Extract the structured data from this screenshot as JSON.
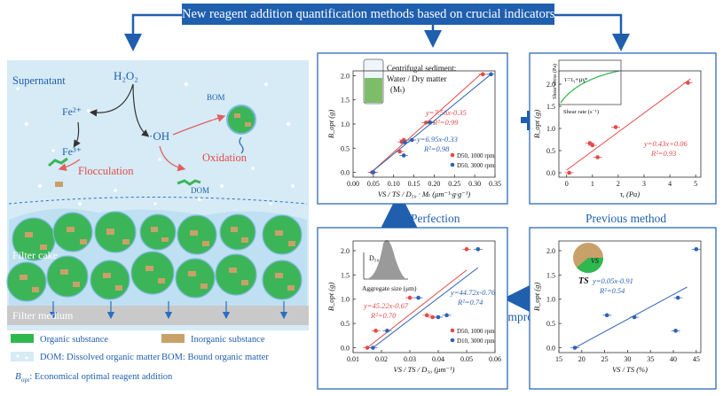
{
  "banner": "New reagent addition quantification methods based on crucial indicators",
  "labels": {
    "perfection": "Perfection",
    "previous_method": "Previous method",
    "improve": "Improve"
  },
  "process": {
    "supernatant": "Supernatant",
    "h2o2": "H₂O₂",
    "fe2": "Fe²⁺",
    "fe3": "Fe³⁺",
    "oh": "·OH",
    "bom": "BOM",
    "dom": "DOM",
    "flocculation": "Flocculation",
    "oxidation": "Oxidation",
    "filter_cake": "Filter cake",
    "filter_medium": "Filter medium"
  },
  "legend": {
    "organic": "Organic substance",
    "inorganic": "Inorganic substance",
    "dom": "DOM: Dissolved organic matter",
    "bom": "BOM: Bound organic matter",
    "bopt": "B",
    "bopt_sub": "opt",
    "bopt_desc": ": Economical optimal reagent addition"
  },
  "colors": {
    "banner": "#1f5fae",
    "accent": "#1f5fae",
    "red_series": "#e34a4a",
    "blue_series": "#2e62b4",
    "organic": "#2fb84e",
    "inorganic": "#c9a06a",
    "water": "#d6ebf6",
    "plus": "#1f5fae"
  },
  "chart_data": [
    {
      "type": "scatter",
      "id": "top-middle",
      "xlabel": "VS / TS / D₅₀ · Mₜ (μm⁻¹·g·g⁻¹)",
      "ylabel": "B_opt (g)",
      "xlim": [
        0.0,
        0.35
      ],
      "ylim": [
        -0.1,
        2.1
      ],
      "xticks": [
        "0.00",
        "0.05",
        "0.10",
        "0.15",
        "0.20",
        "0.25",
        "0.30",
        "0.35"
      ],
      "yticks": [
        "0.0",
        "0.5",
        "1.0",
        "1.5",
        "2.0"
      ],
      "series": [
        {
          "name": "D50, 1000 rpm",
          "color": "red",
          "equation": "y=7.56x-0.35",
          "r2": "R²=0.99",
          "points": [
            [
              0.047,
              0.0
            ],
            [
              0.115,
              0.43
            ],
            [
              0.12,
              0.63
            ],
            [
              0.125,
              0.67
            ],
            [
              0.18,
              1.03
            ],
            [
              0.19,
              1.03
            ],
            [
              0.32,
              2.03
            ]
          ],
          "fit": [
            [
              0.045,
              0.0
            ],
            [
              0.32,
              2.07
            ]
          ]
        },
        {
          "name": "D50, 3000 rpm",
          "color": "blue",
          "equation": "y=6.95x-0.33",
          "r2": "R²=0.98",
          "points": [
            [
              0.05,
              0.0
            ],
            [
              0.125,
              0.35
            ],
            [
              0.128,
              0.62
            ],
            [
              0.145,
              0.67
            ],
            [
              0.19,
              1.03
            ],
            [
              0.34,
              2.03
            ]
          ],
          "fit": [
            [
              0.045,
              0.0
            ],
            [
              0.34,
              2.03
            ]
          ]
        }
      ],
      "inset_text": [
        "Centrifugal sediment:",
        "Water / Dry matter",
        "(Mₜ)"
      ]
    },
    {
      "type": "scatter",
      "id": "top-right",
      "xlabel": "τᵧ (Pa)",
      "ylabel": "B_opt (g)",
      "xlim": [
        -0.3,
        5.2
      ],
      "ylim": [
        -0.1,
        2.3
      ],
      "xticks": [
        "0",
        "1",
        "2",
        "3",
        "4",
        "5"
      ],
      "yticks": [
        "0.0",
        "0.5",
        "1.0",
        "1.5",
        "2.0"
      ],
      "series": [
        {
          "name": "data",
          "color": "red",
          "equation": "y=0.43x+0.06",
          "r2": "R²=0.93",
          "points": [
            [
              0.1,
              0.0
            ],
            [
              1.2,
              0.35
            ],
            [
              0.9,
              0.67
            ],
            [
              1.0,
              0.62
            ],
            [
              1.9,
              1.03
            ],
            [
              4.7,
              2.03
            ]
          ],
          "fit": [
            [
              0.0,
              0.06
            ],
            [
              4.8,
              2.12
            ]
          ]
        }
      ],
      "inset": {
        "title": "τ=τᵧ+μγⁿ",
        "xlabel": "Shear rate (s⁻¹)",
        "ylabel": "Shear stress (Pa)",
        "xticks": [
          "0",
          "200",
          "400",
          "600",
          "800",
          "1000"
        ]
      }
    },
    {
      "type": "scatter",
      "id": "bottom-middle",
      "xlabel": "VS / TS / D₅₀ (μm⁻¹)",
      "ylabel": "B_opt (g)",
      "xlim": [
        0.01,
        0.06
      ],
      "ylim": [
        -0.1,
        2.2
      ],
      "xticks": [
        "0.01",
        "0.02",
        "0.03",
        "0.04",
        "0.05",
        "0.06"
      ],
      "yticks": [
        "0.0",
        "0.5",
        "1.0",
        "1.5",
        "2.0"
      ],
      "series": [
        {
          "name": "D50, 1000 rpm",
          "color": "red",
          "equation": "y=45.22x-0.67",
          "r2": "R²=0.70",
          "points": [
            [
              0.015,
              0.0
            ],
            [
              0.018,
              0.35
            ],
            [
              0.03,
              1.03
            ],
            [
              0.036,
              0.67
            ],
            [
              0.038,
              0.63
            ],
            [
              0.05,
              2.03
            ]
          ],
          "fit": [
            [
              0.015,
              0.0
            ],
            [
              0.05,
              1.6
            ]
          ]
        },
        {
          "name": "D10, 3000 rpm",
          "color": "blue",
          "equation": "y=44.72x-0.76",
          "r2": "R²=0.74",
          "points": [
            [
              0.017,
              0.0
            ],
            [
              0.022,
              0.35
            ],
            [
              0.033,
              1.03
            ],
            [
              0.04,
              0.63
            ],
            [
              0.043,
              0.67
            ],
            [
              0.054,
              2.03
            ]
          ],
          "fit": [
            [
              0.017,
              0.0
            ],
            [
              0.054,
              1.65
            ]
          ]
        }
      ],
      "inset": {
        "label": "D₅₀",
        "xlabel": "Aggregate size (μm)",
        "xticks": [
          "10",
          "100",
          "1000"
        ]
      }
    },
    {
      "type": "scatter",
      "id": "bottom-right",
      "xlabel": "VS / TS (%)",
      "ylabel": "B_opt (g)",
      "xlim": [
        15,
        46
      ],
      "ylim": [
        -0.1,
        2.2
      ],
      "xticks": [
        "15",
        "20",
        "25",
        "30",
        "35",
        "40",
        "45"
      ],
      "yticks": [
        "0.0",
        "0.5",
        "1.0",
        "1.5",
        "2.0"
      ],
      "series": [
        {
          "name": "data",
          "color": "blue",
          "equation": "y=0.05x-0.91",
          "r2": "R²=0.54",
          "points": [
            [
              18.5,
              0.0
            ],
            [
              25.5,
              0.67
            ],
            [
              31.5,
              0.63
            ],
            [
              40.5,
              0.35
            ],
            [
              41.0,
              1.03
            ],
            [
              45.0,
              2.03
            ]
          ],
          "fit": [
            [
              18.5,
              0.0
            ],
            [
              43.0,
              1.25
            ]
          ]
        }
      ],
      "inset": {
        "vs": "VS",
        "ts": "TS"
      }
    }
  ]
}
